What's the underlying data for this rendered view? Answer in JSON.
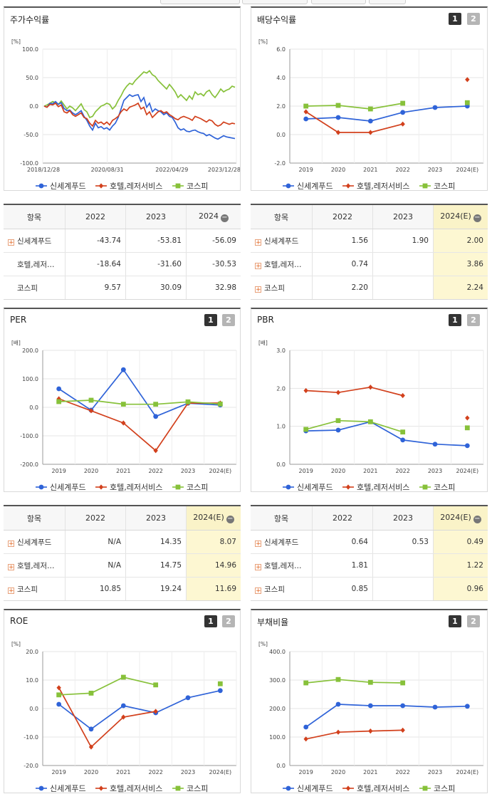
{
  "colors": {
    "s1": "#2f63d8",
    "s2": "#d2401c",
    "s3": "#87c13a",
    "highlight": "#fdf7d2"
  },
  "series_names": [
    "신세계푸드",
    "호텔,레저서비스",
    "코스피"
  ],
  "toggle": {
    "b1": "1",
    "b2": "2"
  },
  "charts": [
    {
      "id": "stock",
      "title": "주가수익률",
      "unit": "[%]",
      "type": "line-daily",
      "has_toggle": false,
      "yticks": [
        "100.0",
        "50.0",
        "0.0",
        "-50.0",
        "-100.0"
      ],
      "ylim": [
        -100,
        100
      ],
      "xticks": [
        "2018/12/28",
        "2020/08/31",
        "2022/04/29",
        "2023/12/28"
      ],
      "series": [
        {
          "name": "신세계푸드",
          "values": [
            0,
            -2,
            5,
            4,
            8,
            3,
            6,
            -4,
            -8,
            -7,
            -12,
            -15,
            -12,
            -8,
            -18,
            -25,
            -35,
            -42,
            -30,
            -38,
            -36,
            -40,
            -38,
            -42,
            -35,
            -30,
            -20,
            -5,
            10,
            15,
            20,
            17,
            19,
            20,
            8,
            15,
            -2,
            5,
            -10,
            -5,
            -8,
            -10,
            -15,
            -12,
            -18,
            -20,
            -28,
            -38,
            -42,
            -40,
            -44,
            -45,
            -43,
            -42,
            -45,
            -47,
            -48,
            -52,
            -50,
            -53,
            -56,
            -58,
            -55,
            -52,
            -54,
            -55,
            -56,
            -57
          ]
        },
        {
          "name": "호텔,레저서비스",
          "values": [
            0,
            -2,
            3,
            2,
            5,
            -1,
            2,
            -10,
            -12,
            -8,
            -15,
            -18,
            -15,
            -12,
            -20,
            -22,
            -30,
            -35,
            -25,
            -30,
            -28,
            -32,
            -28,
            -33,
            -25,
            -22,
            -18,
            -10,
            -5,
            -8,
            -2,
            0,
            2,
            5,
            -5,
            -2,
            -15,
            -10,
            -20,
            -15,
            -10,
            -8,
            -12,
            -10,
            -15,
            -18,
            -22,
            -24,
            -20,
            -18,
            -20,
            -22,
            -25,
            -18,
            -20,
            -22,
            -25,
            -28,
            -24,
            -26,
            -32,
            -35,
            -33,
            -28,
            -30,
            -32,
            -30,
            -31
          ]
        },
        {
          "name": "코스피",
          "values": [
            0,
            2,
            5,
            8,
            6,
            3,
            9,
            2,
            -5,
            0,
            -3,
            -8,
            -2,
            4,
            -6,
            -10,
            -20,
            -18,
            -10,
            -5,
            0,
            2,
            5,
            3,
            -5,
            0,
            10,
            18,
            28,
            35,
            40,
            38,
            45,
            50,
            55,
            60,
            58,
            62,
            55,
            52,
            45,
            40,
            35,
            30,
            38,
            32,
            25,
            15,
            20,
            15,
            10,
            18,
            12,
            25,
            20,
            22,
            18,
            25,
            28,
            20,
            15,
            22,
            30,
            25,
            28,
            30,
            35,
            33
          ]
        }
      ]
    },
    {
      "id": "div",
      "title": "배당수익률",
      "unit": "[%]",
      "type": "line",
      "has_toggle": true,
      "yticks": [
        "6.0",
        "4.0",
        "2.0",
        "0.0",
        "-2.0"
      ],
      "ylim": [
        -2,
        6
      ],
      "xticks": [
        "2019",
        "2020",
        "2021",
        "2022",
        "2023",
        "2024(E)"
      ],
      "series": [
        {
          "name": "신세계푸드",
          "values": [
            1.1,
            1.2,
            0.95,
            1.56,
            1.9,
            2.0
          ]
        },
        {
          "name": "호텔,레저서비스",
          "values": [
            1.6,
            0.15,
            0.15,
            0.74,
            null,
            3.86
          ]
        },
        {
          "name": "코스피",
          "values": [
            2.0,
            2.05,
            1.8,
            2.2,
            null,
            2.24
          ]
        }
      ]
    },
    {
      "id": "per",
      "title": "PER",
      "unit": "[배]",
      "type": "line",
      "has_toggle": true,
      "yticks": [
        "200.0",
        "100.0",
        "0.0",
        "-100.0",
        "-200.0"
      ],
      "ylim": [
        -200,
        200
      ],
      "xticks": [
        "2019",
        "2020",
        "2021",
        "2022",
        "2023",
        "2024(E)"
      ],
      "series": [
        {
          "name": "신세계푸드",
          "values": [
            65,
            -10,
            132,
            -32,
            14.35,
            8.07
          ]
        },
        {
          "name": "호텔,레저서비스",
          "values": [
            30,
            -12,
            -55,
            -152,
            14.75,
            14.96
          ]
        },
        {
          "name": "코스피",
          "values": [
            20,
            25,
            11,
            10.85,
            19.24,
            11.69
          ]
        }
      ]
    },
    {
      "id": "pbr",
      "title": "PBR",
      "unit": "[배]",
      "type": "line",
      "has_toggle": true,
      "yticks": [
        "3.0",
        "2.0",
        "1.0",
        "0.0"
      ],
      "ylim": [
        0,
        3
      ],
      "xticks": [
        "2019",
        "2020",
        "2021",
        "2022",
        "2023",
        "2024(E)"
      ],
      "series": [
        {
          "name": "신세계푸드",
          "values": [
            0.88,
            0.9,
            1.12,
            0.64,
            0.53,
            0.49
          ]
        },
        {
          "name": "호텔,레저서비스",
          "values": [
            1.94,
            1.89,
            2.03,
            1.81,
            null,
            1.22
          ]
        },
        {
          "name": "코스피",
          "values": [
            0.92,
            1.15,
            1.12,
            0.85,
            null,
            0.96
          ]
        }
      ]
    },
    {
      "id": "roe",
      "title": "ROE",
      "unit": "[%]",
      "type": "line",
      "has_toggle": true,
      "yticks": [
        "20.0",
        "10.0",
        "0.0",
        "-10.0",
        "-20.0"
      ],
      "ylim": [
        -20,
        20
      ],
      "xticks": [
        "2019",
        "2020",
        "2021",
        "2022",
        "2023",
        "2024(E)"
      ],
      "series": [
        {
          "name": "신세계푸드",
          "values": [
            1.5,
            -7.2,
            1.0,
            -1.5,
            3.8,
            6.3
          ]
        },
        {
          "name": "호텔,레저서비스",
          "values": [
            7.3,
            -13.5,
            -3.0,
            -1.0,
            null,
            null
          ]
        },
        {
          "name": "코스피",
          "values": [
            4.8,
            5.4,
            11.0,
            8.3,
            null,
            8.7
          ]
        }
      ]
    },
    {
      "id": "debt",
      "title": "부채비율",
      "unit": "[%]",
      "type": "line",
      "has_toggle": true,
      "yticks": [
        "400.0",
        "300.0",
        "200.0",
        "100.0",
        "0.0"
      ],
      "ylim": [
        0,
        400
      ],
      "xticks": [
        "2019",
        "2020",
        "2021",
        "2022",
        "2023",
        "2024(E)"
      ],
      "series": [
        {
          "name": "신세계푸드",
          "values": [
            135,
            215,
            210,
            210,
            205,
            208
          ]
        },
        {
          "name": "호텔,레저서비스",
          "values": [
            93,
            117,
            121,
            124,
            null,
            null
          ]
        },
        {
          "name": "코스피",
          "values": [
            290,
            302,
            292,
            290,
            null,
            null
          ]
        }
      ]
    }
  ],
  "tables": {
    "stock": {
      "headers": [
        "항목",
        "2022",
        "2023",
        "2024"
      ],
      "minus_header": true,
      "highlight": false,
      "rows": [
        {
          "label": "신세계푸드",
          "plus": true,
          "cells": [
            "-43.74",
            "-53.81",
            "-56.09"
          ]
        },
        {
          "label": "호텔,레저…",
          "plus": false,
          "cells": [
            "-18.64",
            "-31.60",
            "-30.53"
          ]
        },
        {
          "label": "코스피",
          "plus": false,
          "cells": [
            "9.57",
            "30.09",
            "32.98"
          ]
        }
      ]
    },
    "div": {
      "headers": [
        "항목",
        "2022",
        "2023",
        "2024(E)"
      ],
      "minus_header": true,
      "highlight": true,
      "rows": [
        {
          "label": "신세계푸드",
          "plus": true,
          "cells": [
            "1.56",
            "1.90",
            "2.00"
          ]
        },
        {
          "label": "호텔,레저…",
          "plus": true,
          "cells": [
            "0.74",
            "",
            "3.86"
          ]
        },
        {
          "label": "코스피",
          "plus": true,
          "cells": [
            "2.20",
            "",
            "2.24"
          ]
        }
      ]
    },
    "per": {
      "headers": [
        "항목",
        "2022",
        "2023",
        "2024(E)"
      ],
      "minus_header": true,
      "highlight": true,
      "rows": [
        {
          "label": "신세계푸드",
          "plus": true,
          "cells": [
            "N/A",
            "14.35",
            "8.07"
          ]
        },
        {
          "label": "호텔,레저…",
          "plus": true,
          "cells": [
            "N/A",
            "14.75",
            "14.96"
          ]
        },
        {
          "label": "코스피",
          "plus": true,
          "cells": [
            "10.85",
            "19.24",
            "11.69"
          ]
        }
      ]
    },
    "pbr": {
      "headers": [
        "항목",
        "2022",
        "2023",
        "2024(E)"
      ],
      "minus_header": true,
      "highlight": true,
      "rows": [
        {
          "label": "신세계푸드",
          "plus": true,
          "cells": [
            "0.64",
            "0.53",
            "0.49"
          ]
        },
        {
          "label": "호텔,레저…",
          "plus": true,
          "cells": [
            "1.81",
            "",
            "1.22"
          ]
        },
        {
          "label": "코스피",
          "plus": true,
          "cells": [
            "0.85",
            "",
            "0.96"
          ]
        }
      ]
    }
  }
}
